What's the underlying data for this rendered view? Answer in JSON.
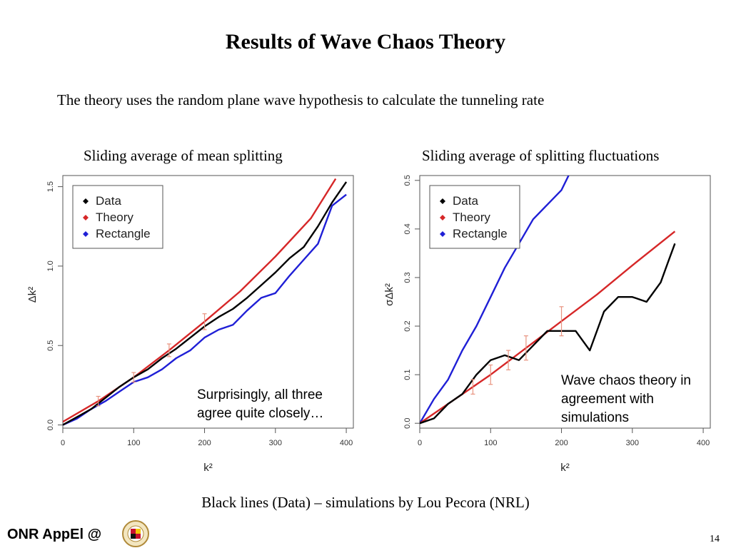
{
  "slide": {
    "title": "Results of Wave Chaos Theory",
    "subtitle": "The theory uses the random plane wave hypothesis to calculate the tunneling rate",
    "footnote": "Black lines (Data) – simulations by Lou Pecora (NRL)",
    "brand": "ONR AppEl @",
    "page_number": "14"
  },
  "colors": {
    "data": "#000000",
    "theory": "#d62728",
    "rectangle": "#1f1fd6",
    "error_bars": "#e8937f",
    "axis": "#555555"
  },
  "chart_data": [
    {
      "type": "line",
      "caption": "Sliding average of mean splitting",
      "xlabel": "k²",
      "ylabel": "Δk²",
      "xlim": [
        0,
        410
      ],
      "ylim": [
        -0.02,
        1.57
      ],
      "xticks": [
        0,
        100,
        200,
        300,
        400
      ],
      "yticks": [
        0.0,
        0.5,
        1.0,
        1.5
      ],
      "xtick_labels": [
        "0",
        "100",
        "200",
        "300",
        "400"
      ],
      "ytick_labels": [
        "0.0",
        "0.5",
        "1.0",
        "1.5"
      ],
      "legend": {
        "position": "top-left",
        "entries": [
          "Data",
          "Theory",
          "Rectangle"
        ]
      },
      "annotation": [
        "Surprisingly, all three",
        "agree quite closely…"
      ],
      "series": [
        {
          "name": "Data",
          "color_key": "data",
          "x": [
            0,
            20,
            40,
            60,
            80,
            100,
            120,
            140,
            160,
            180,
            200,
            220,
            240,
            260,
            280,
            300,
            320,
            340,
            360,
            380,
            400
          ],
          "y": [
            0.0,
            0.05,
            0.1,
            0.17,
            0.24,
            0.3,
            0.35,
            0.42,
            0.48,
            0.55,
            0.62,
            0.68,
            0.73,
            0.8,
            0.88,
            0.96,
            1.05,
            1.12,
            1.25,
            1.4,
            1.53
          ]
        },
        {
          "name": "Theory",
          "color_key": "theory",
          "x": [
            0,
            50,
            100,
            150,
            200,
            250,
            300,
            350,
            385
          ],
          "y": [
            0.02,
            0.15,
            0.3,
            0.47,
            0.65,
            0.84,
            1.06,
            1.3,
            1.55
          ]
        },
        {
          "name": "Rectangle",
          "color_key": "rectangle",
          "x": [
            0,
            20,
            40,
            60,
            80,
            100,
            120,
            140,
            160,
            180,
            200,
            220,
            240,
            260,
            280,
            300,
            320,
            340,
            360,
            380,
            400
          ],
          "y": [
            0.0,
            0.04,
            0.1,
            0.15,
            0.21,
            0.27,
            0.3,
            0.35,
            0.42,
            0.47,
            0.55,
            0.6,
            0.63,
            0.72,
            0.8,
            0.83,
            0.94,
            1.04,
            1.14,
            1.38,
            1.45
          ]
        }
      ],
      "error_bars": [
        {
          "x": 50,
          "y": 0.15,
          "err": 0.03
        },
        {
          "x": 100,
          "y": 0.3,
          "err": 0.03
        },
        {
          "x": 150,
          "y": 0.47,
          "err": 0.04
        },
        {
          "x": 200,
          "y": 0.65,
          "err": 0.05
        }
      ]
    },
    {
      "type": "line",
      "caption": "Sliding average of splitting fluctuations",
      "xlabel": "k²",
      "ylabel": "σΔk²",
      "xlim": [
        0,
        410
      ],
      "ylim": [
        -0.01,
        0.51
      ],
      "xticks": [
        0,
        100,
        200,
        300,
        400
      ],
      "yticks": [
        0.0,
        0.1,
        0.2,
        0.3,
        0.4,
        0.5
      ],
      "xtick_labels": [
        "0",
        "100",
        "200",
        "300",
        "400"
      ],
      "ytick_labels": [
        "0.0",
        "0.1",
        "0.2",
        "0.3",
        "0.4",
        "0.5"
      ],
      "legend": {
        "position": "top-left",
        "entries": [
          "Data",
          "Theory",
          "Rectangle"
        ]
      },
      "annotation": [
        "Wave chaos theory in",
        "agreement with",
        "simulations"
      ],
      "series": [
        {
          "name": "Data",
          "color_key": "data",
          "x": [
            0,
            20,
            40,
            60,
            80,
            100,
            120,
            140,
            160,
            180,
            200,
            220,
            240,
            260,
            280,
            300,
            320,
            340,
            350,
            360
          ],
          "y": [
            0.0,
            0.01,
            0.04,
            0.06,
            0.1,
            0.13,
            0.14,
            0.13,
            0.16,
            0.19,
            0.19,
            0.19,
            0.15,
            0.23,
            0.26,
            0.26,
            0.25,
            0.29,
            0.33,
            0.37
          ]
        },
        {
          "name": "Theory",
          "color_key": "theory",
          "x": [
            0,
            50,
            100,
            150,
            200,
            250,
            300,
            360
          ],
          "y": [
            0.0,
            0.05,
            0.1,
            0.155,
            0.21,
            0.265,
            0.325,
            0.395
          ]
        },
        {
          "name": "Rectangle",
          "color_key": "rectangle",
          "x": [
            0,
            20,
            40,
            60,
            80,
            100,
            120,
            140,
            160,
            180,
            200,
            210
          ],
          "y": [
            0.0,
            0.05,
            0.09,
            0.15,
            0.2,
            0.26,
            0.32,
            0.37,
            0.42,
            0.45,
            0.48,
            0.51
          ]
        }
      ],
      "error_bars": [
        {
          "x": 75,
          "y": 0.075,
          "err": 0.015
        },
        {
          "x": 100,
          "y": 0.1,
          "err": 0.02
        },
        {
          "x": 125,
          "y": 0.13,
          "err": 0.02
        },
        {
          "x": 150,
          "y": 0.155,
          "err": 0.025
        },
        {
          "x": 200,
          "y": 0.21,
          "err": 0.03
        }
      ]
    }
  ]
}
